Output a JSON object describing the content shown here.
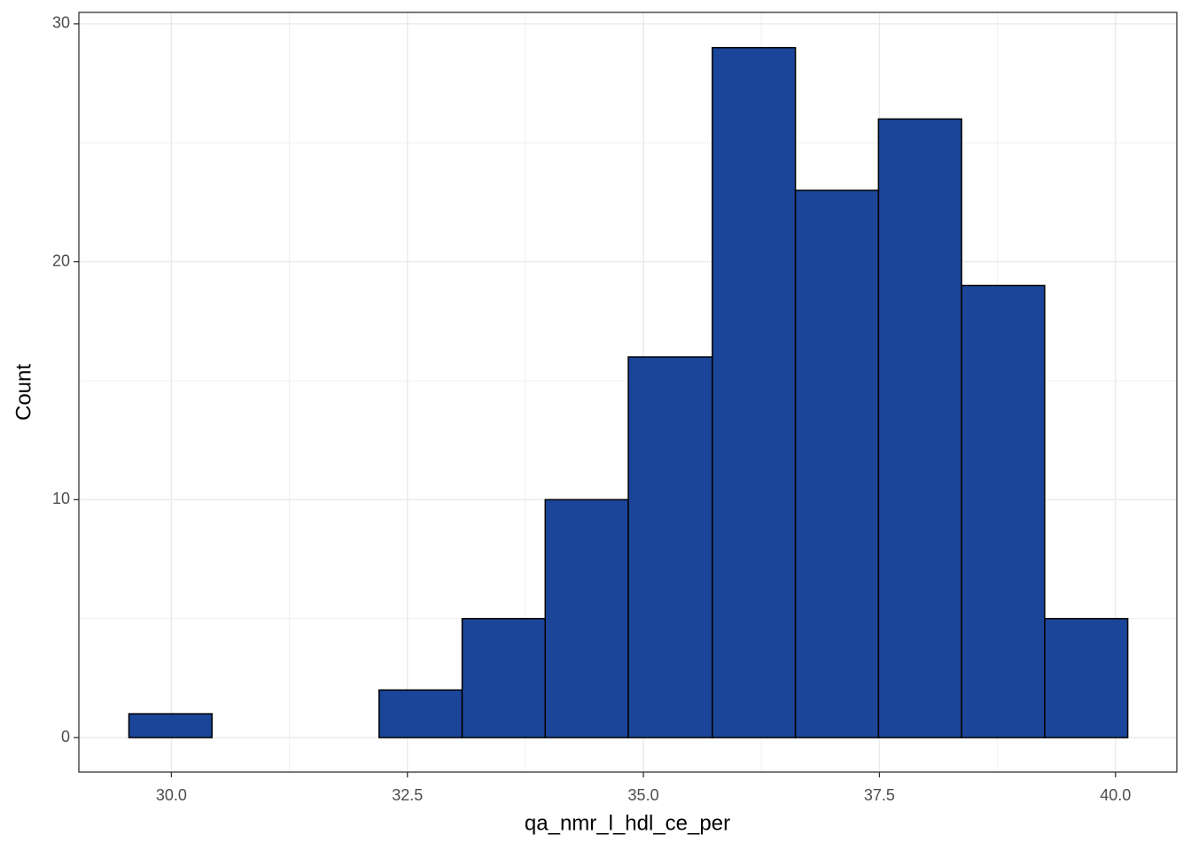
{
  "chart_data": {
    "type": "histogram",
    "xlabel": "qa_nmr_l_hdl_ce_per",
    "ylabel": "Count",
    "bins": [
      29.55,
      30.43,
      31.31,
      32.2,
      33.08,
      33.96,
      34.84,
      35.73,
      36.61,
      37.49,
      38.37,
      39.25,
      40.13
    ],
    "values": [
      1,
      0,
      0,
      2,
      5,
      10,
      16,
      29,
      23,
      26,
      19,
      5
    ],
    "color": "#1a4599",
    "edgecolor": "#000000",
    "xlim": [
      29.02,
      40.65
    ],
    "ylim": [
      -1.45,
      30.48
    ],
    "xticks": [
      {
        "value": 30,
        "label": "30.0"
      },
      {
        "value": 32.5,
        "label": "32.5"
      },
      {
        "value": 35,
        "label": "35.0"
      },
      {
        "value": 37.5,
        "label": "37.5"
      },
      {
        "value": 40,
        "label": "40.0"
      }
    ],
    "yticks": [
      0,
      10,
      20,
      30
    ],
    "grid": true
  }
}
